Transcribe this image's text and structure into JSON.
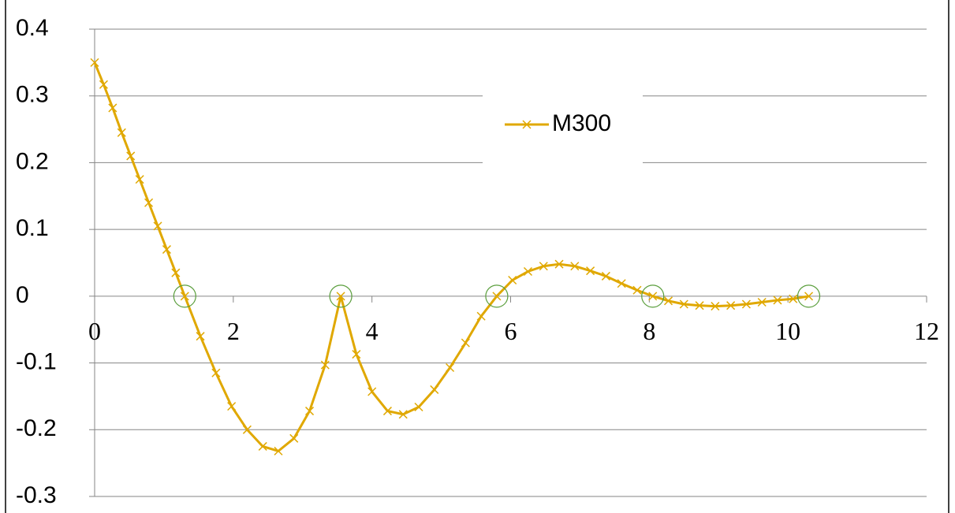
{
  "chart_data": {
    "type": "line",
    "xlim": [
      0,
      12
    ],
    "xticks": [
      0,
      2,
      4,
      6,
      8,
      10,
      12
    ],
    "ylim": [
      -0.3,
      0.4
    ],
    "yticks": [
      0.4,
      0.3,
      0.2,
      0.1,
      0,
      -0.1,
      -0.2,
      -0.3
    ],
    "grid": true,
    "legend": "top-center",
    "series": [
      {
        "name": "M300",
        "color": "#e0a800",
        "marker": "x",
        "x": [
          0,
          0.13,
          0.26,
          0.39,
          0.52,
          0.65,
          0.78,
          0.91,
          1.04,
          1.17,
          1.3,
          1.525,
          1.75,
          1.975,
          2.2,
          2.425,
          2.65,
          2.875,
          3.1,
          3.325,
          3.55,
          3.775,
          4,
          4.225,
          4.45,
          4.675,
          4.9,
          5.125,
          5.35,
          5.575,
          5.8,
          6.025,
          6.25,
          6.475,
          6.7,
          6.925,
          7.15,
          7.375,
          7.6,
          7.825,
          8.05,
          8.275,
          8.5,
          8.725,
          8.95,
          9.175,
          9.4,
          9.625,
          9.85,
          10.075,
          10.3
        ],
        "values": [
          0.35,
          0.317,
          0.282,
          0.245,
          0.21,
          0.175,
          0.14,
          0.105,
          0.07,
          0.035,
          0,
          -0.06,
          -0.115,
          -0.165,
          -0.2,
          -0.225,
          -0.232,
          -0.213,
          -0.172,
          -0.103,
          0,
          -0.087,
          -0.143,
          -0.172,
          -0.177,
          -0.166,
          -0.14,
          -0.107,
          -0.07,
          -0.03,
          0,
          0.024,
          0.037,
          0.045,
          0.048,
          0.045,
          0.038,
          0.03,
          0.019,
          0.009,
          0,
          -0.007,
          -0.012,
          -0.014,
          -0.015,
          -0.014,
          -0.012,
          -0.009,
          -0.006,
          -0.004,
          0
        ]
      },
      {
        "color": "#5a9e3c",
        "marker": "circle",
        "x": [
          1.3,
          3.55,
          5.8,
          8.05,
          10.3
        ],
        "values": [
          0,
          0,
          0,
          0,
          0
        ]
      }
    ]
  }
}
